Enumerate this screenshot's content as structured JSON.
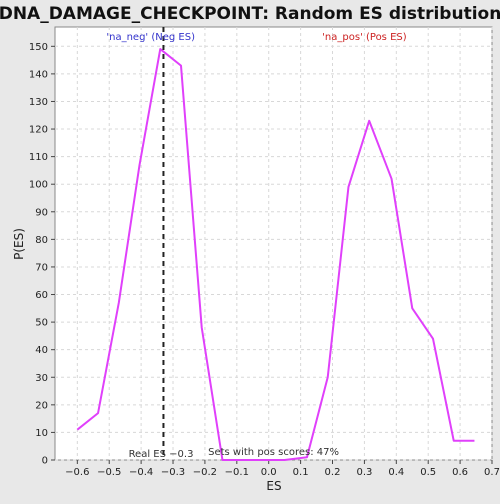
{
  "chart_data": {
    "type": "line",
    "title": "DNA_DAMAGE_CHECKPOINT: Random ES distribution",
    "xlabel": "ES",
    "ylabel": "P(ES)",
    "xlim": [
      -0.67,
      0.7
    ],
    "ylim": [
      0,
      157
    ],
    "xticks": [
      -0.6,
      -0.5,
      -0.4,
      -0.3,
      -0.2,
      -0.1,
      0.0,
      0.1,
      0.2,
      0.3,
      0.4,
      0.5,
      0.6,
      0.7
    ],
    "xtick_labels": [
      "−0.6",
      "−0.5",
      "−0.4",
      "−0.3",
      "−0.2",
      "−0.1",
      "0.0",
      "0.1",
      "0.2",
      "0.3",
      "0.4",
      "0.5",
      "0.6",
      "0.7"
    ],
    "yticks": [
      0,
      10,
      20,
      30,
      40,
      50,
      60,
      70,
      80,
      90,
      100,
      110,
      120,
      130,
      140,
      150
    ],
    "ytick_labels": [
      "0",
      "10",
      "20",
      "30",
      "40",
      "50",
      "60",
      "70",
      "80",
      "90",
      "100",
      "110",
      "120",
      "130",
      "140",
      "150"
    ],
    "grid": true,
    "series": [
      {
        "color": "#e040fb",
        "x": [
          -0.6,
          -0.535,
          -0.47,
          -0.405,
          -0.34,
          -0.275,
          -0.21,
          -0.145,
          -0.08,
          0.0,
          0.05,
          0.12,
          0.185,
          0.25,
          0.315,
          0.385,
          0.45,
          0.515,
          0.58,
          0.645
        ],
        "y": [
          11,
          17,
          57,
          107,
          149,
          143,
          48,
          0,
          0,
          0,
          0,
          1,
          30,
          99,
          123,
          102,
          55,
          44,
          7,
          7
        ]
      }
    ],
    "vline": {
      "x": -0.33,
      "style": "dashed",
      "color": "#222222"
    },
    "annotations": {
      "neg": {
        "text": "'na_neg' (Neg ES)",
        "color": "#3333cc"
      },
      "pos": {
        "text": "'na_pos' (Pos ES)",
        "color": "#cc2222"
      },
      "real_es": {
        "text": "Real ES −0.3",
        "color": "#333333"
      },
      "pos_scores": {
        "text": "Sets with pos scores: 47%",
        "color": "#333333"
      }
    },
    "colors": {
      "plot_bg": "#ffffff",
      "frame_bg": "#e8e8e8",
      "grid": "#d8d8d8",
      "axis": "#444444"
    }
  }
}
